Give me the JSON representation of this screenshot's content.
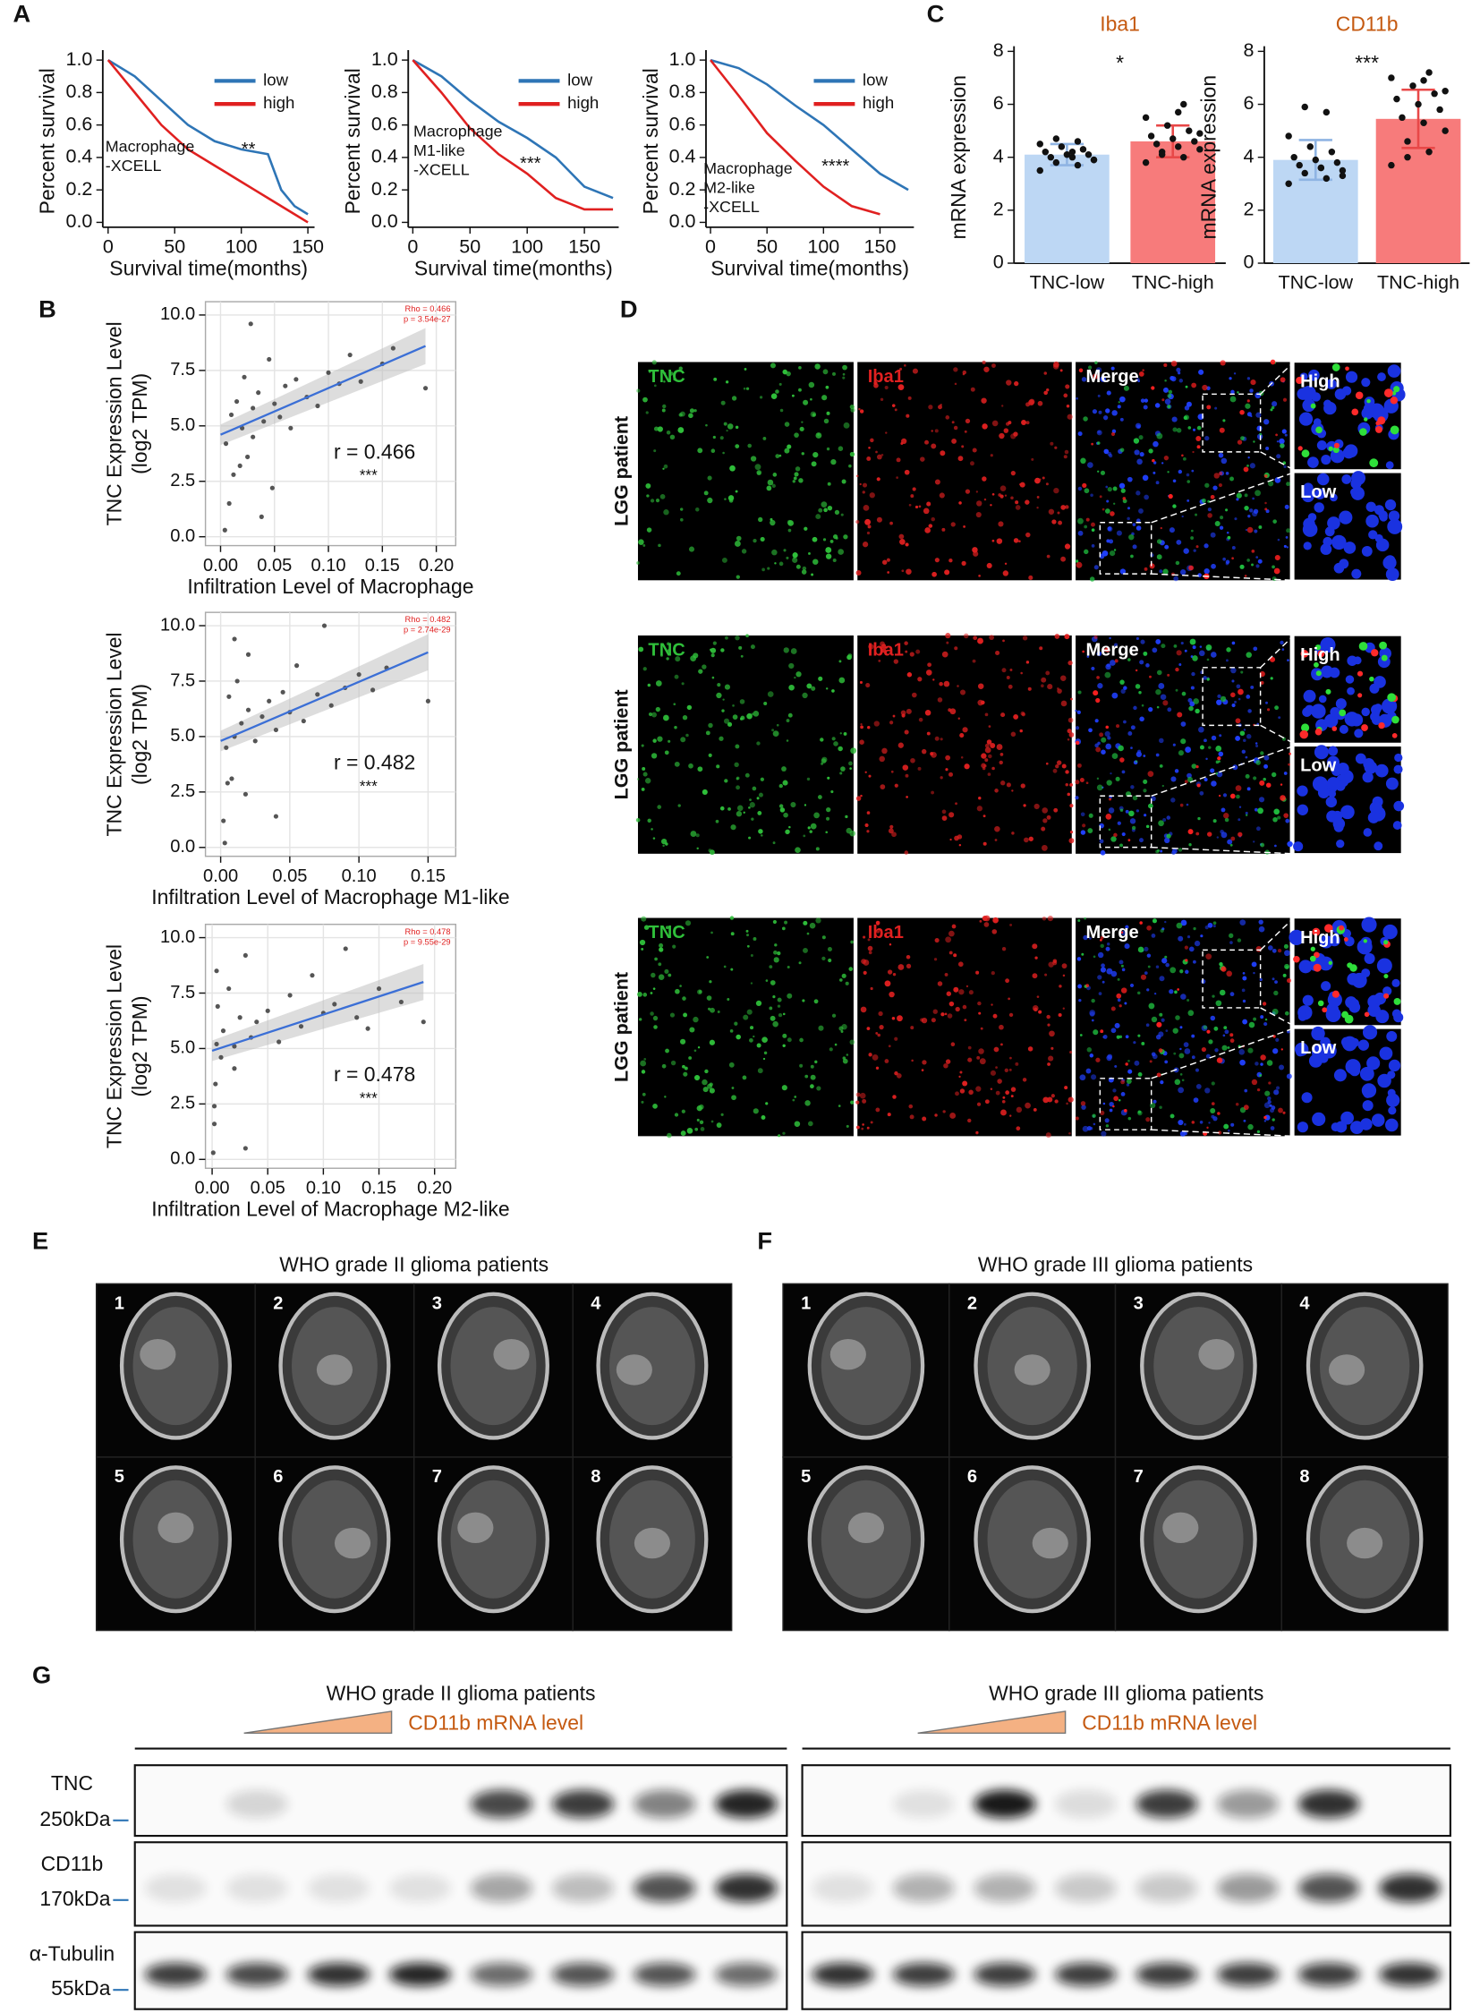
{
  "panel_labels": [
    "A",
    "B",
    "C",
    "D",
    "E",
    "F",
    "G"
  ],
  "chart_data": [
    {
      "type": "line",
      "ylabel": "Percent survival",
      "xlabel": "Survival time(months)",
      "legend": "upper right",
      "annotation": [
        "Macrophage",
        "-XCELL"
      ],
      "significance": "**",
      "xlim": [
        -4,
        155
      ],
      "xticks": [
        0,
        50,
        100,
        150
      ],
      "ylim": [
        -0.03,
        1.03
      ],
      "yticks": [
        {
          "value": 0,
          "label": "0.0"
        },
        {
          "value": 0.2,
          "label": "0.2"
        },
        {
          "value": 0.4,
          "label": "0.4"
        },
        {
          "value": 0.6,
          "label": "0.6"
        },
        {
          "value": 0.8,
          "label": "0.8"
        },
        {
          "value": 1,
          "label": "1.0"
        }
      ],
      "series": [
        {
          "name": "low",
          "color": "#2e75b6",
          "x": [
            0,
            20,
            40,
            60,
            80,
            100,
            120,
            130,
            140,
            150
          ],
          "values": [
            1,
            0.9,
            0.75,
            0.6,
            0.5,
            0.45,
            0.42,
            0.2,
            0.1,
            0.05
          ]
        },
        {
          "name": "high",
          "color": "#e02020",
          "x": [
            0,
            20,
            40,
            60,
            80,
            100,
            110,
            120,
            140,
            150
          ],
          "values": [
            1,
            0.8,
            0.6,
            0.45,
            0.35,
            0.25,
            0.2,
            0.15,
            0.05,
            0
          ]
        }
      ]
    },
    {
      "type": "line",
      "ylabel": "Percent survival",
      "xlabel": "Survival time(months)",
      "legend": "upper right",
      "annotation": [
        "Macrophage",
        "M1-like",
        "-XCELL"
      ],
      "significance": "***",
      "xlim": [
        -4,
        180
      ],
      "xticks": [
        0,
        50,
        100,
        150
      ],
      "ylim": [
        -0.03,
        1.03
      ],
      "yticks": [
        {
          "value": 0,
          "label": "0.0"
        },
        {
          "value": 0.2,
          "label": "0.2"
        },
        {
          "value": 0.4,
          "label": "0.4"
        },
        {
          "value": 0.6,
          "label": "0.6"
        },
        {
          "value": 0.8,
          "label": "0.8"
        },
        {
          "value": 1,
          "label": "1.0"
        }
      ],
      "series": [
        {
          "name": "low",
          "color": "#2e75b6",
          "x": [
            0,
            25,
            50,
            75,
            100,
            125,
            150,
            175
          ],
          "values": [
            1,
            0.9,
            0.75,
            0.62,
            0.52,
            0.4,
            0.22,
            0.15
          ]
        },
        {
          "name": "high",
          "color": "#e02020",
          "x": [
            0,
            25,
            50,
            75,
            100,
            125,
            150,
            175
          ],
          "values": [
            1,
            0.8,
            0.58,
            0.42,
            0.3,
            0.15,
            0.08,
            0.08
          ]
        }
      ]
    },
    {
      "type": "line",
      "ylabel": "Percent survival",
      "xlabel": "Survival time(months)",
      "legend": "upper right",
      "annotation": [
        "Macrophage",
        "M2-like",
        "-XCELL"
      ],
      "significance": "****",
      "xlim": [
        -4,
        180
      ],
      "xticks": [
        0,
        50,
        100,
        150
      ],
      "ylim": [
        -0.03,
        1.03
      ],
      "yticks": [
        {
          "value": 0,
          "label": "0.0"
        },
        {
          "value": 0.2,
          "label": "0.2"
        },
        {
          "value": 0.4,
          "label": "0.4"
        },
        {
          "value": 0.6,
          "label": "0.6"
        },
        {
          "value": 0.8,
          "label": "0.8"
        },
        {
          "value": 1,
          "label": "1.0"
        }
      ],
      "series": [
        {
          "name": "low",
          "color": "#2e75b6",
          "x": [
            0,
            25,
            50,
            75,
            100,
            125,
            150,
            175
          ],
          "values": [
            1,
            0.95,
            0.85,
            0.72,
            0.6,
            0.45,
            0.3,
            0.2
          ]
        },
        {
          "name": "high",
          "color": "#e02020",
          "x": [
            0,
            25,
            50,
            75,
            100,
            125,
            150
          ],
          "values": [
            1,
            0.78,
            0.55,
            0.38,
            0.22,
            0.1,
            0.05
          ]
        }
      ]
    },
    {
      "type": "bar",
      "title": "Iba1",
      "ylabel": "mRNA expression",
      "significance": "*",
      "categories": [
        "TNC-low",
        "TNC-high"
      ],
      "values": [
        4.1,
        4.6
      ],
      "errors": [
        0.4,
        0.6
      ],
      "colors": [
        "#bdd7f4",
        "#f77b7b"
      ],
      "error_colors": [
        "#8fb4e3",
        "#e84848"
      ],
      "points": [
        [
          3.5,
          3.7,
          3.8,
          3.9,
          4.0,
          4.0,
          4.1,
          4.1,
          4.2,
          4.3,
          4.4,
          4.5,
          4.6,
          4.7,
          3.9,
          4.2
        ],
        [
          3.8,
          4.0,
          4.2,
          4.3,
          4.4,
          4.5,
          4.6,
          4.7,
          4.8,
          5.0,
          5.2,
          5.5,
          6.0,
          4.1,
          4.9,
          5.7
        ]
      ],
      "ylim": [
        0,
        8
      ],
      "yticks": [
        0,
        2,
        4,
        6,
        8
      ]
    },
    {
      "type": "bar",
      "title": "CD11b",
      "ylabel": "mRNA expression",
      "significance": "***",
      "categories": [
        "TNC-low",
        "TNC-high"
      ],
      "values": [
        3.9,
        5.45
      ],
      "errors": [
        0.75,
        1.1
      ],
      "colors": [
        "#bdd7f4",
        "#f77b7b"
      ],
      "error_colors": [
        "#8fb4e3",
        "#e84848"
      ],
      "points": [
        [
          3.0,
          3.2,
          3.4,
          3.5,
          3.6,
          3.7,
          3.8,
          3.9,
          4.0,
          4.2,
          4.4,
          4.8,
          5.7,
          5.9,
          3.3,
          3.6
        ],
        [
          3.7,
          4.2,
          4.6,
          5.0,
          5.3,
          5.5,
          5.8,
          6.0,
          6.2,
          6.4,
          6.7,
          7.0,
          7.2,
          4.0,
          6.5,
          6.9
        ]
      ],
      "ylim": [
        0,
        8
      ],
      "yticks": [
        0,
        2,
        4,
        6,
        8
      ]
    },
    {
      "type": "scatter",
      "ylabel": [
        "TNC Expression Level",
        "(log2 TPM)"
      ],
      "xlabel": "Infiltration Level of Macrophage",
      "grid": true,
      "stat_labels": [
        "Rho = 0.466",
        "p = 3.54e-27"
      ],
      "r_label": "r = 0.466",
      "significance": "***",
      "color": "#555555",
      "trend_line": {
        "color": "#3b6fd6",
        "x": [
          0,
          0.19
        ],
        "y": [
          4.6,
          8.6
        ]
      },
      "x": [
        0.005,
        0.01,
        0.012,
        0.015,
        0.02,
        0.022,
        0.025,
        0.03,
        0.03,
        0.035,
        0.04,
        0.045,
        0.05,
        0.055,
        0.06,
        0.065,
        0.07,
        0.08,
        0.09,
        0.1,
        0.11,
        0.12,
        0.13,
        0.15,
        0.16,
        0.19,
        0.008,
        0.018,
        0.028,
        0.038,
        0.048,
        0.004
      ],
      "values": [
        4.2,
        5.5,
        2.8,
        6.1,
        4.9,
        7.2,
        3.6,
        5.8,
        4.5,
        6.5,
        5.2,
        8.0,
        6.0,
        5.4,
        6.8,
        4.9,
        7.1,
        6.3,
        5.9,
        7.4,
        6.9,
        8.2,
        7.0,
        7.8,
        8.5,
        6.7,
        1.5,
        3.2,
        9.6,
        0.9,
        2.2,
        0.3
      ],
      "xlim": [
        -0.014,
        0.218
      ],
      "xticks": [
        {
          "value": 0,
          "label": "0.00"
        },
        {
          "value": 0.05,
          "label": "0.05"
        },
        {
          "value": 0.1,
          "label": "0.10"
        },
        {
          "value": 0.15,
          "label": "0.15"
        },
        {
          "value": 0.2,
          "label": "0.20"
        }
      ],
      "ylim": [
        -0.4,
        10.6
      ],
      "yticks": [
        {
          "value": 0,
          "label": "0.0"
        },
        {
          "value": 2.5,
          "label": "2.5"
        },
        {
          "value": 5,
          "label": "5.0"
        },
        {
          "value": 7.5,
          "label": "7.5"
        },
        {
          "value": 10,
          "label": "10.0"
        }
      ]
    },
    {
      "type": "scatter",
      "ylabel": [
        "TNC Expression Level",
        "(log2 TPM)"
      ],
      "xlabel": "Infiltration Level of Macrophage M1-like",
      "grid": true,
      "stat_labels": [
        "Rho = 0.482",
        "p = 2.74e-29"
      ],
      "r_label": "r = 0.482",
      "significance": "***",
      "color": "#555555",
      "trend_line": {
        "color": "#3b6fd6",
        "x": [
          0,
          0.15
        ],
        "y": [
          4.8,
          8.8
        ]
      },
      "x": [
        0.002,
        0.004,
        0.006,
        0.008,
        0.01,
        0.012,
        0.015,
        0.018,
        0.02,
        0.025,
        0.03,
        0.035,
        0.04,
        0.045,
        0.05,
        0.055,
        0.06,
        0.07,
        0.075,
        0.08,
        0.09,
        0.1,
        0.11,
        0.12,
        0.15,
        0.003,
        0.005,
        0.01,
        0.02,
        0.04
      ],
      "values": [
        1.2,
        4.5,
        6.8,
        3.1,
        5.0,
        7.5,
        5.6,
        2.4,
        6.2,
        4.8,
        5.9,
        6.6,
        5.3,
        7.0,
        6.1,
        8.2,
        5.7,
        6.9,
        10.0,
        6.4,
        7.2,
        7.8,
        7.1,
        8.1,
        6.6,
        0.2,
        2.9,
        9.4,
        8.7,
        1.4
      ],
      "xlim": [
        -0.011,
        0.17
      ],
      "xticks": [
        {
          "value": 0,
          "label": "0.00"
        },
        {
          "value": 0.05,
          "label": "0.05"
        },
        {
          "value": 0.1,
          "label": "0.10"
        },
        {
          "value": 0.15,
          "label": "0.15"
        }
      ],
      "ylim": [
        -0.4,
        10.6
      ],
      "yticks": [
        {
          "value": 0,
          "label": "0.0"
        },
        {
          "value": 2.5,
          "label": "2.5"
        },
        {
          "value": 5,
          "label": "5.0"
        },
        {
          "value": 7.5,
          "label": "7.5"
        },
        {
          "value": 10,
          "label": "10.0"
        }
      ]
    },
    {
      "type": "scatter",
      "ylabel": [
        "TNC Expression Level",
        "(log2 TPM)"
      ],
      "xlabel": "Infiltration Level of Macrophage M2-like",
      "grid": true,
      "stat_labels": [
        "Rho = 0.478",
        "p = 9.55e-29"
      ],
      "r_label": "r = 0.478",
      "significance": "***",
      "color": "#555555",
      "trend_line": {
        "color": "#3b6fd6",
        "x": [
          0,
          0.19
        ],
        "y": [
          4.9,
          8.0
        ]
      },
      "x": [
        0.001,
        0.002,
        0.003,
        0.004,
        0.005,
        0.008,
        0.01,
        0.015,
        0.02,
        0.025,
        0.03,
        0.035,
        0.04,
        0.05,
        0.06,
        0.07,
        0.08,
        0.09,
        0.1,
        0.11,
        0.12,
        0.13,
        0.14,
        0.15,
        0.17,
        0.19,
        0.002,
        0.004,
        0.02,
        0.03
      ],
      "values": [
        0.3,
        1.6,
        3.4,
        5.2,
        6.9,
        4.6,
        5.8,
        7.7,
        5.1,
        6.4,
        9.2,
        5.5,
        6.2,
        6.7,
        5.3,
        7.4,
        6.0,
        8.3,
        6.6,
        7.0,
        9.5,
        6.4,
        5.9,
        7.7,
        7.1,
        6.2,
        2.4,
        8.5,
        4.1,
        0.5
      ],
      "xlim": [
        -0.006,
        0.219
      ],
      "xticks": [
        {
          "value": 0,
          "label": "0.00"
        },
        {
          "value": 0.05,
          "label": "0.05"
        },
        {
          "value": 0.1,
          "label": "0.10"
        },
        {
          "value": 0.15,
          "label": "0.15"
        },
        {
          "value": 0.2,
          "label": "0.20"
        }
      ],
      "ylim": [
        -0.4,
        10.6
      ],
      "yticks": [
        {
          "value": 0,
          "label": "0.0"
        },
        {
          "value": 2.5,
          "label": "2.5"
        },
        {
          "value": 5,
          "label": "5.0"
        },
        {
          "value": 7.5,
          "label": "7.5"
        },
        {
          "value": 10,
          "label": "10.0"
        }
      ]
    }
  ],
  "microscopy": {
    "row_label": "LGG patient",
    "channels": [
      "TNC",
      "Iba1",
      "Merge"
    ],
    "insets": [
      "High",
      "Low"
    ]
  },
  "mri": [
    {
      "title": "WHO grade II glioma patients",
      "numbers": [
        "1",
        "2",
        "3",
        "4",
        "5",
        "6",
        "7",
        "8"
      ]
    },
    {
      "title": "WHO grade III glioma patients",
      "numbers": [
        "1",
        "2",
        "3",
        "4",
        "5",
        "6",
        "7",
        "8"
      ]
    }
  ],
  "western_blot": {
    "titles": [
      "WHO grade II glioma patients",
      "WHO grade III glioma patients"
    ],
    "gradient_label": "CD11b mRNA level",
    "rows": [
      {
        "protein": "TNC",
        "size": "250kDa"
      },
      {
        "protein": "CD11b",
        "size": "170kDa"
      },
      {
        "protein": "α-Tubulin",
        "size": "55kDa"
      }
    ]
  }
}
